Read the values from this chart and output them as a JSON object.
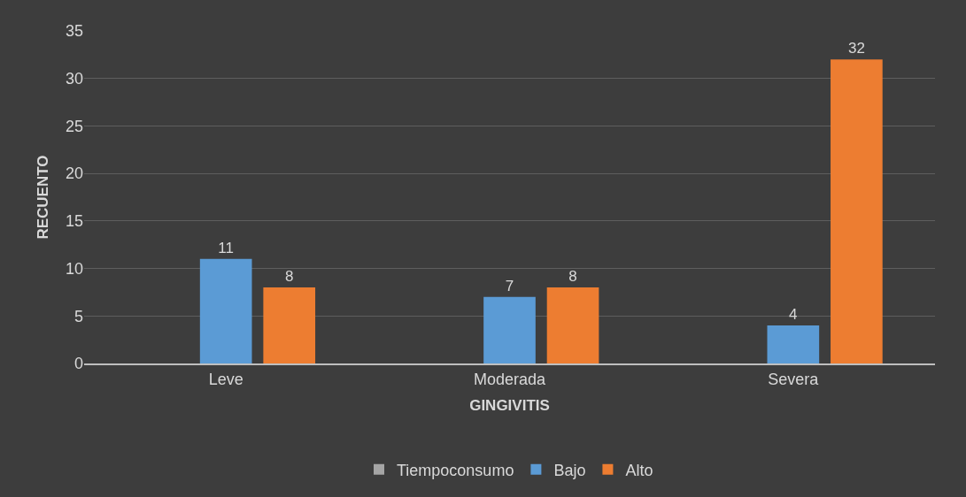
{
  "chart_data": {
    "type": "bar",
    "xlabel": "GINGIVITIS",
    "ylabel": "RECUENTO",
    "categories": [
      "Leve",
      "Moderada",
      "Severa"
    ],
    "series": [
      {
        "name": "Tiempoconsumo",
        "color": "#a5a5a5",
        "values": [
          null,
          null,
          null
        ]
      },
      {
        "name": "Bajo",
        "color": "#5b9bd5",
        "values": [
          11,
          7,
          4
        ]
      },
      {
        "name": "Alto",
        "color": "#ed7d31",
        "values": [
          8,
          8,
          32
        ]
      }
    ],
    "ylim": [
      0,
      35
    ],
    "yticks": [
      0,
      5,
      10,
      15,
      20,
      25,
      30,
      35
    ],
    "grid": "y",
    "legend": "bottom",
    "data_labels": true
  }
}
